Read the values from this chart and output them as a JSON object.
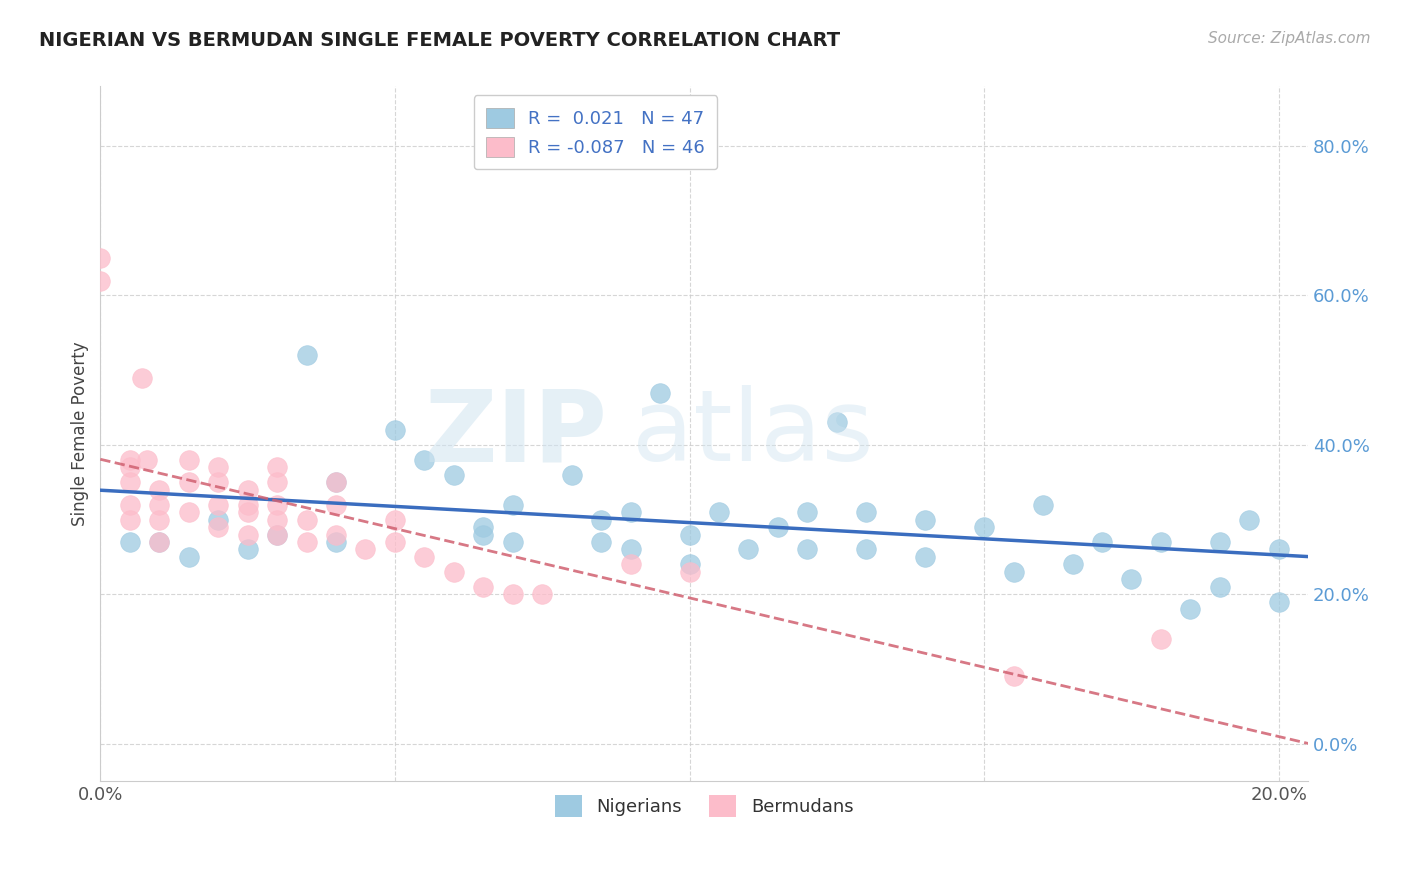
{
  "title": "NIGERIAN VS BERMUDAN SINGLE FEMALE POVERTY CORRELATION CHART",
  "source": "Source: ZipAtlas.com",
  "ylabel": "Single Female Poverty",
  "xlim": [
    0.0,
    0.205
  ],
  "ylim": [
    -0.05,
    0.88
  ],
  "yticks": [
    0.0,
    0.2,
    0.4,
    0.6,
    0.8
  ],
  "ytick_labels": [
    "0.0%",
    "20.0%",
    "40.0%",
    "60.0%",
    "80.0%"
  ],
  "xticks": [
    0.0,
    0.05,
    0.1,
    0.15,
    0.2
  ],
  "xtick_labels": [
    "0.0%",
    "",
    "",
    "",
    "20.0%"
  ],
  "color_nigerian": "#9ecae1",
  "color_bermudan": "#fcbcca",
  "trendline_nigerian": "#3a6dbf",
  "trendline_bermudan": "#d06070",
  "background_color": "#ffffff",
  "watermark_zip": "ZIP",
  "watermark_atlas": "atlas",
  "nigerian_x": [
    0.005,
    0.01,
    0.015,
    0.02,
    0.025,
    0.03,
    0.035,
    0.04,
    0.04,
    0.05,
    0.055,
    0.06,
    0.065,
    0.065,
    0.07,
    0.07,
    0.08,
    0.085,
    0.085,
    0.09,
    0.09,
    0.095,
    0.1,
    0.1,
    0.105,
    0.11,
    0.115,
    0.12,
    0.12,
    0.125,
    0.13,
    0.13,
    0.14,
    0.14,
    0.15,
    0.155,
    0.16,
    0.165,
    0.17,
    0.175,
    0.18,
    0.185,
    0.19,
    0.19,
    0.195,
    0.2,
    0.2
  ],
  "nigerian_y": [
    0.27,
    0.27,
    0.25,
    0.3,
    0.26,
    0.28,
    0.52,
    0.35,
    0.27,
    0.42,
    0.38,
    0.36,
    0.29,
    0.28,
    0.32,
    0.27,
    0.36,
    0.3,
    0.27,
    0.31,
    0.26,
    0.47,
    0.28,
    0.24,
    0.31,
    0.26,
    0.29,
    0.31,
    0.26,
    0.43,
    0.31,
    0.26,
    0.3,
    0.25,
    0.29,
    0.23,
    0.32,
    0.24,
    0.27,
    0.22,
    0.27,
    0.18,
    0.27,
    0.21,
    0.3,
    0.26,
    0.19
  ],
  "bermudan_x": [
    0.0,
    0.0,
    0.005,
    0.005,
    0.005,
    0.005,
    0.005,
    0.007,
    0.008,
    0.01,
    0.01,
    0.01,
    0.01,
    0.015,
    0.015,
    0.015,
    0.02,
    0.02,
    0.02,
    0.02,
    0.025,
    0.025,
    0.025,
    0.025,
    0.03,
    0.03,
    0.03,
    0.03,
    0.03,
    0.035,
    0.035,
    0.04,
    0.04,
    0.04,
    0.045,
    0.05,
    0.05,
    0.055,
    0.06,
    0.065,
    0.07,
    0.075,
    0.09,
    0.1,
    0.155,
    0.18
  ],
  "bermudan_y": [
    0.65,
    0.62,
    0.38,
    0.37,
    0.35,
    0.32,
    0.3,
    0.49,
    0.38,
    0.34,
    0.32,
    0.3,
    0.27,
    0.38,
    0.35,
    0.31,
    0.37,
    0.35,
    0.32,
    0.29,
    0.34,
    0.32,
    0.31,
    0.28,
    0.37,
    0.35,
    0.32,
    0.3,
    0.28,
    0.3,
    0.27,
    0.35,
    0.32,
    0.28,
    0.26,
    0.3,
    0.27,
    0.25,
    0.23,
    0.21,
    0.2,
    0.2,
    0.24,
    0.23,
    0.09,
    0.14
  ]
}
